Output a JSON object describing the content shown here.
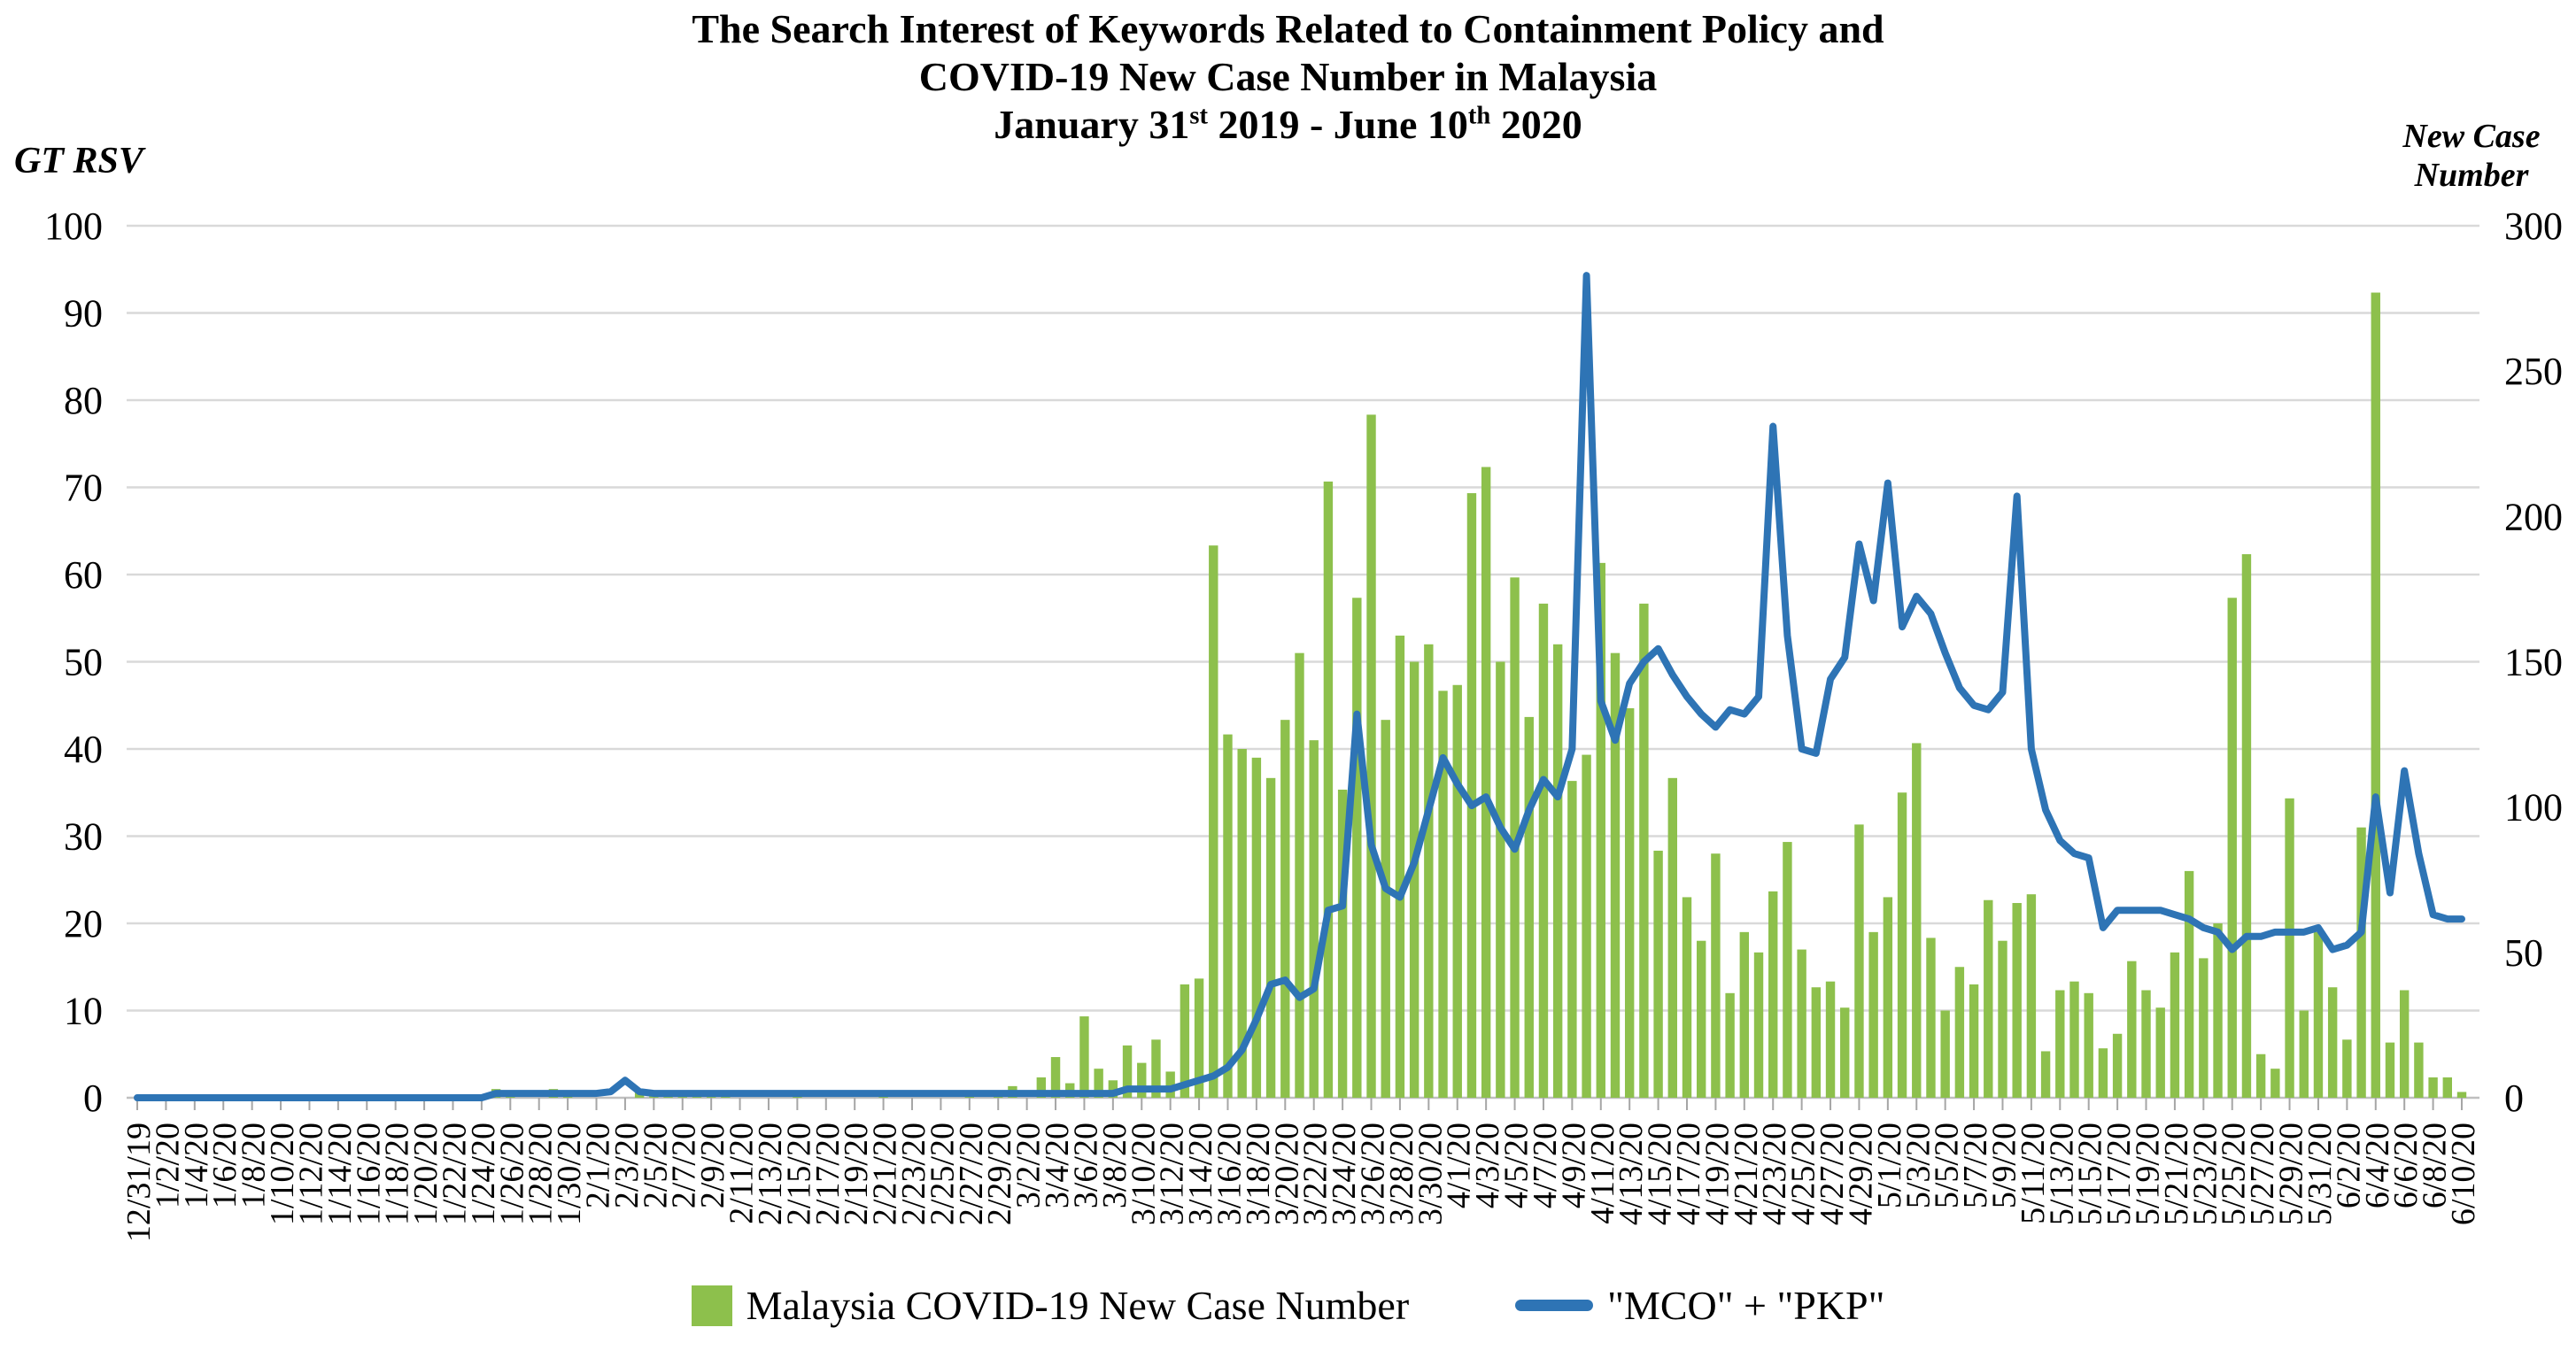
{
  "title": {
    "line1": "The Search Interest of Keywords Related to Containment Policy and",
    "line2": "COVID-19 New Case Number in Malaysia",
    "line3": {
      "pre": "January 31",
      "sup1": "st",
      "mid": " 2019 - June 10",
      "sup2": "th",
      "post": " 2020"
    }
  },
  "left_axis": {
    "title": "GT RSV",
    "ticks": [
      0,
      10,
      20,
      30,
      40,
      50,
      60,
      70,
      80,
      90,
      100
    ],
    "min": 0,
    "max": 100
  },
  "right_axis": {
    "title_line1": "New Case",
    "title_line2": "Number",
    "ticks": [
      0,
      50,
      100,
      150,
      200,
      250,
      300
    ],
    "min": 0,
    "max": 300
  },
  "colors": {
    "bar": "#8dc04c",
    "line": "#2e74b5",
    "gridline": "#d9d9d9",
    "baseline": "#bfbfbf",
    "tick": "#a6a6a6",
    "text": "#000000"
  },
  "chart_data": {
    "type": "combo",
    "subtypes": [
      "bar",
      "line"
    ],
    "title": "The Search Interest of Keywords Related to Containment Policy and COVID-19 New Case Number in Malaysia January 31st 2019 - June 10th 2020",
    "left_ylabel": "GT RSV",
    "right_ylabel": "New Case Number",
    "left_ylim": [
      0,
      100
    ],
    "right_ylim": [
      0,
      300
    ],
    "grid": "horizontal",
    "legend_position": "bottom",
    "x_tick_every": 2,
    "x": [
      "12/31/19",
      "1/1/20",
      "1/2/20",
      "1/3/20",
      "1/4/20",
      "1/5/20",
      "1/6/20",
      "1/7/20",
      "1/8/20",
      "1/9/20",
      "1/10/20",
      "1/11/20",
      "1/12/20",
      "1/13/20",
      "1/14/20",
      "1/15/20",
      "1/16/20",
      "1/17/20",
      "1/18/20",
      "1/19/20",
      "1/20/20",
      "1/21/20",
      "1/22/20",
      "1/23/20",
      "1/24/20",
      "1/25/20",
      "1/26/20",
      "1/27/20",
      "1/28/20",
      "1/29/20",
      "1/30/20",
      "1/31/20",
      "2/1/20",
      "2/2/20",
      "2/3/20",
      "2/4/20",
      "2/5/20",
      "2/6/20",
      "2/7/20",
      "2/8/20",
      "2/9/20",
      "2/10/20",
      "2/11/20",
      "2/12/20",
      "2/13/20",
      "2/14/20",
      "2/15/20",
      "2/16/20",
      "2/17/20",
      "2/18/20",
      "2/19/20",
      "2/20/20",
      "2/21/20",
      "2/22/20",
      "2/23/20",
      "2/24/20",
      "2/25/20",
      "2/26/20",
      "2/27/20",
      "2/28/20",
      "2/29/20",
      "3/1/20",
      "3/2/20",
      "3/3/20",
      "3/4/20",
      "3/5/20",
      "3/6/20",
      "3/7/20",
      "3/8/20",
      "3/9/20",
      "3/10/20",
      "3/11/20",
      "3/12/20",
      "3/13/20",
      "3/14/20",
      "3/15/20",
      "3/16/20",
      "3/17/20",
      "3/18/20",
      "3/19/20",
      "3/20/20",
      "3/21/20",
      "3/22/20",
      "3/23/20",
      "3/24/20",
      "3/25/20",
      "3/26/20",
      "3/27/20",
      "3/28/20",
      "3/29/20",
      "3/30/20",
      "3/31/20",
      "4/1/20",
      "4/2/20",
      "4/3/20",
      "4/4/20",
      "4/5/20",
      "4/6/20",
      "4/7/20",
      "4/8/20",
      "4/9/20",
      "4/10/20",
      "4/11/20",
      "4/12/20",
      "4/13/20",
      "4/14/20",
      "4/15/20",
      "4/16/20",
      "4/17/20",
      "4/18/20",
      "4/19/20",
      "4/20/20",
      "4/21/20",
      "4/22/20",
      "4/23/20",
      "4/24/20",
      "4/25/20",
      "4/26/20",
      "4/27/20",
      "4/28/20",
      "4/29/20",
      "4/30/20",
      "5/1/20",
      "5/2/20",
      "5/3/20",
      "5/4/20",
      "5/5/20",
      "5/6/20",
      "5/7/20",
      "5/8/20",
      "5/9/20",
      "5/10/20",
      "5/11/20",
      "5/12/20",
      "5/13/20",
      "5/14/20",
      "5/15/20",
      "5/16/20",
      "5/17/20",
      "5/18/20",
      "5/19/20",
      "5/20/20",
      "5/21/20",
      "5/22/20",
      "5/23/20",
      "5/24/20",
      "5/25/20",
      "5/26/20",
      "5/27/20",
      "5/28/20",
      "5/29/20",
      "5/30/20",
      "5/31/20",
      "6/1/20",
      "6/2/20",
      "6/3/20",
      "6/4/20",
      "6/5/20",
      "6/6/20",
      "6/7/20",
      "6/8/20",
      "6/9/20",
      "6/10/20"
    ],
    "series": [
      {
        "name": "Malaysia COVID-19 New Case Number",
        "type": "bar",
        "axis": "right",
        "color": "#8dc04c",
        "values": [
          0,
          0,
          0,
          0,
          0,
          0,
          0,
          0,
          0,
          0,
          0,
          0,
          0,
          0,
          0,
          0,
          0,
          0,
          0,
          0,
          0,
          0,
          0,
          0,
          0,
          3,
          1,
          0,
          0,
          3,
          1,
          0,
          0,
          0,
          0,
          2,
          2,
          2,
          2,
          1,
          1,
          2,
          0,
          0,
          0,
          0,
          2,
          0,
          0,
          0,
          0,
          0,
          2,
          0,
          0,
          0,
          0,
          0,
          1,
          0,
          1,
          4,
          0,
          7,
          14,
          5,
          28,
          10,
          6,
          18,
          12,
          20,
          9,
          39,
          41,
          190,
          125,
          120,
          117,
          110,
          130,
          153,
          123,
          212,
          106,
          172,
          235,
          130,
          159,
          150,
          156,
          140,
          142,
          208,
          217,
          150,
          179,
          131,
          170,
          156,
          109,
          118,
          184,
          153,
          134,
          170,
          85,
          110,
          69,
          54,
          84,
          36,
          57,
          50,
          71,
          88,
          51,
          38,
          40,
          31,
          94,
          57,
          69,
          105,
          122,
          55,
          30,
          45,
          39,
          68,
          54,
          67,
          70,
          16,
          37,
          40,
          36,
          17,
          22,
          47,
          37,
          31,
          50,
          78,
          48,
          60,
          172,
          187,
          15,
          10,
          103,
          30,
          57,
          38,
          20,
          93,
          277,
          19,
          37,
          19,
          7,
          7,
          2
        ]
      },
      {
        "name": "\"MCO\" + \"PKP\"",
        "type": "line",
        "axis": "left",
        "color": "#2e74b5",
        "values": [
          0,
          0,
          0,
          0,
          0,
          0,
          0,
          0,
          0,
          0,
          0,
          0,
          0,
          0,
          0,
          0,
          0,
          0,
          0,
          0,
          0,
          0,
          0,
          0,
          0,
          0.5,
          0.5,
          0.5,
          0.5,
          0.5,
          0.5,
          0.5,
          0.5,
          0.7,
          2,
          0.7,
          0.5,
          0.5,
          0.5,
          0.5,
          0.5,
          0.5,
          0.5,
          0.5,
          0.5,
          0.5,
          0.5,
          0.5,
          0.5,
          0.5,
          0.5,
          0.5,
          0.5,
          0.5,
          0.5,
          0.5,
          0.5,
          0.5,
          0.5,
          0.5,
          0.5,
          0.5,
          0.5,
          0.5,
          0.5,
          0.5,
          0.5,
          0.5,
          0.5,
          1,
          1,
          1,
          1,
          1.5,
          2,
          2.5,
          3.5,
          5.5,
          9,
          13,
          13.5,
          11.5,
          12.5,
          21.5,
          22,
          44,
          29,
          24,
          23,
          27,
          33,
          39,
          36,
          33.5,
          34.5,
          31,
          28.5,
          33,
          36.5,
          34.5,
          40,
          94.3,
          45.5,
          41,
          47.5,
          50,
          51.5,
          48.5,
          46,
          44,
          42.5,
          44.5,
          44,
          46,
          77,
          53,
          40,
          39.5,
          48,
          50.5,
          63.5,
          57,
          70.5,
          54,
          57.5,
          55.5,
          51,
          47,
          45,
          44.5,
          46.5,
          69,
          40,
          33,
          29.5,
          28,
          27.5,
          19.5,
          21.5,
          21.5,
          21.5,
          21.5,
          21,
          20.5,
          19.5,
          19,
          17,
          18.5,
          18.5,
          19,
          19,
          19,
          19.5,
          17,
          17.5,
          19,
          34.5,
          23.5,
          37.5,
          28,
          21,
          20.5,
          20.5
        ]
      }
    ]
  },
  "legend": {
    "item1": "Malaysia COVID-19 New Case Number",
    "item2": "\"MCO\" + \"PKP\""
  }
}
